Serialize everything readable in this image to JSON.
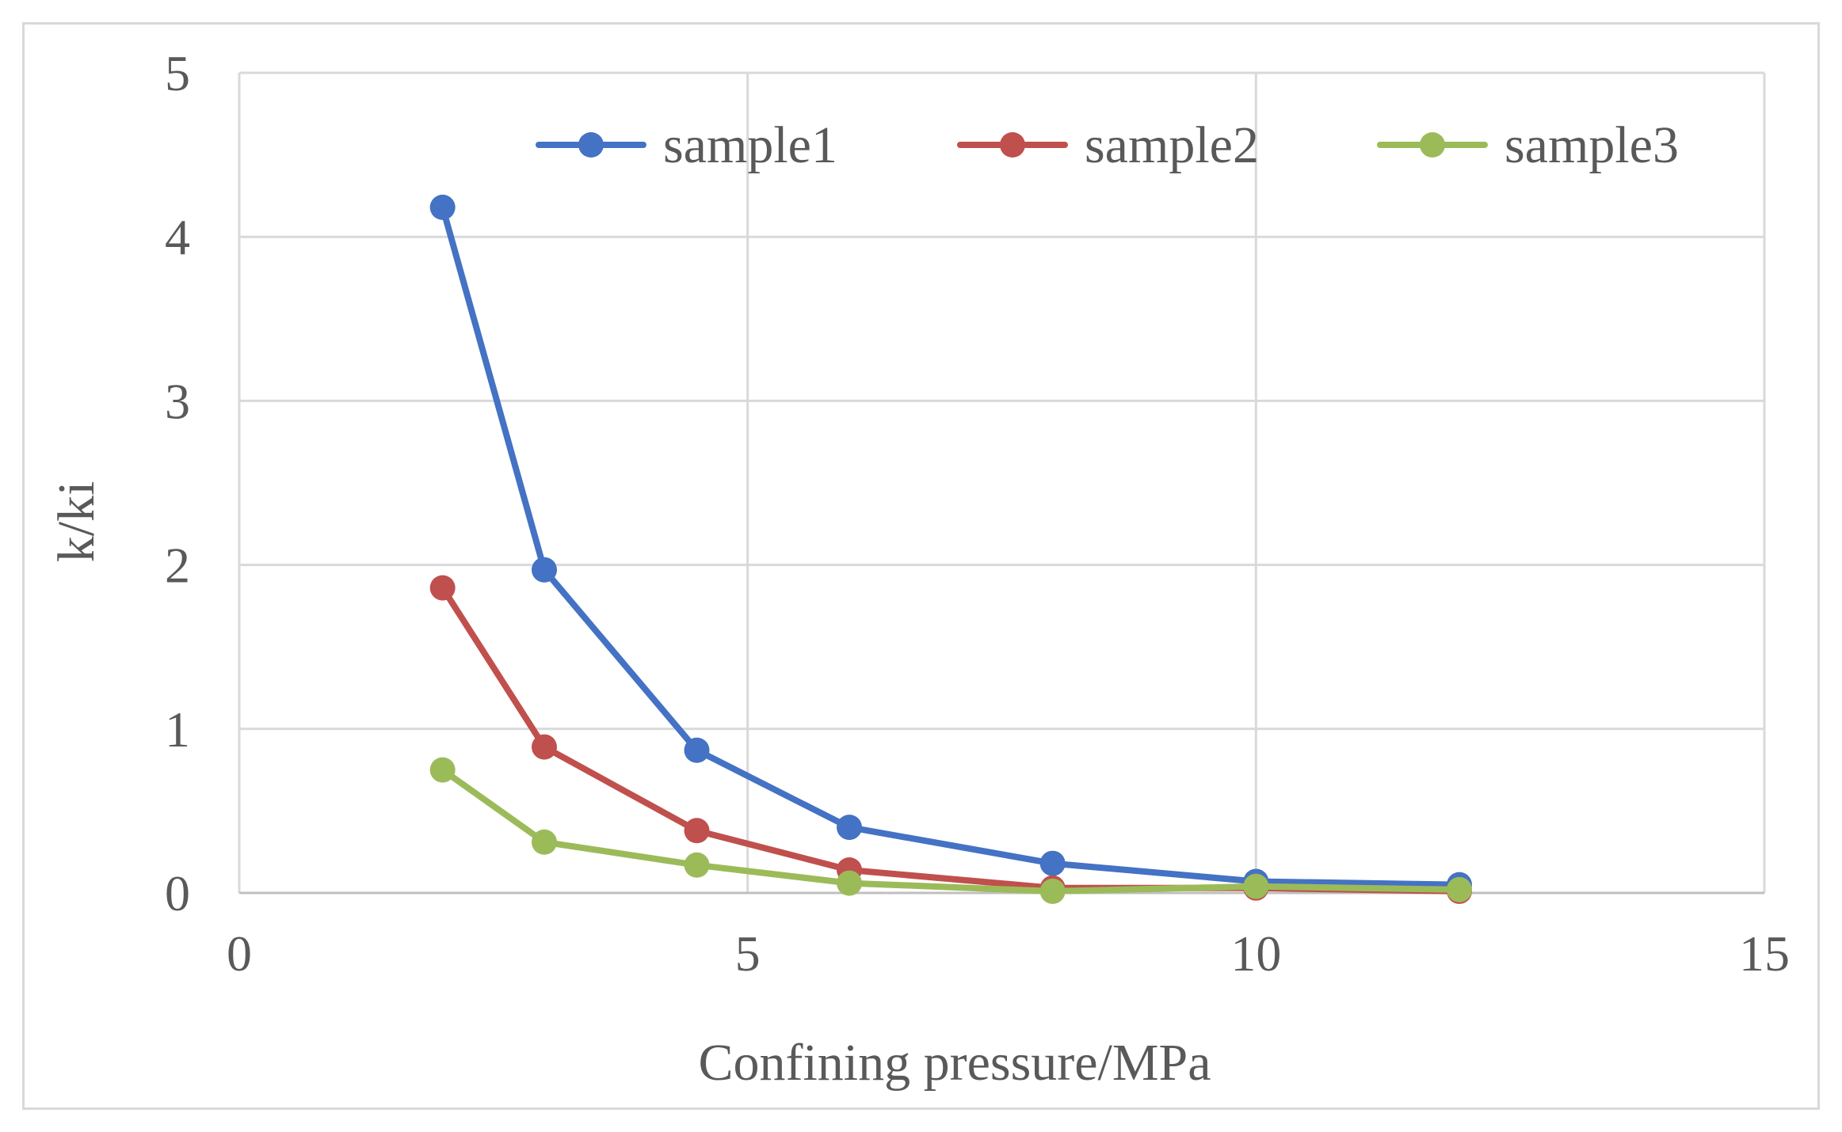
{
  "chart_data": {
    "type": "line",
    "title": "",
    "xlabel": "Confining pressure/MPa",
    "ylabel": "k/ki",
    "xlim": [
      0,
      15
    ],
    "ylim": [
      0,
      5
    ],
    "x_ticks": [
      "0",
      "5",
      "10",
      "15"
    ],
    "y_ticks": [
      "0",
      "1",
      "2",
      "3",
      "4",
      "5"
    ],
    "grid": true,
    "legend_position": "top",
    "series": [
      {
        "name": "sample1",
        "color": "#4472c4",
        "x": [
          2,
          3,
          4.5,
          6,
          8,
          10,
          12
        ],
        "y": [
          4.18,
          1.97,
          0.87,
          0.4,
          0.18,
          0.07,
          0.05
        ]
      },
      {
        "name": "sample2",
        "color": "#c0504d",
        "x": [
          2,
          3,
          4.5,
          6,
          8,
          10,
          12
        ],
        "y": [
          1.86,
          0.89,
          0.38,
          0.14,
          0.03,
          0.03,
          0.01
        ]
      },
      {
        "name": "sample3",
        "color": "#9bbb59",
        "x": [
          2,
          3,
          4.5,
          6,
          8,
          10,
          12
        ],
        "y": [
          0.75,
          0.31,
          0.17,
          0.06,
          0.01,
          0.04,
          0.02
        ]
      }
    ]
  }
}
